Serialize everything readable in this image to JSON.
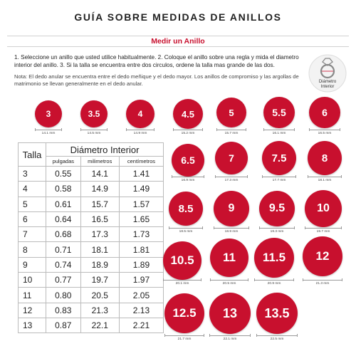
{
  "header": {
    "title": "GUÍA SOBRE MEDIDAS DE ANILLOS",
    "subtitle": "Medir un Anillo"
  },
  "instructions": "1. Seleccione un anillo que usted utilice habitualmente. 2. Coloque el anillo sobre una regla y mida el diametro interior del anillo. 3. Si la talla se encuentra entre dos circulos, ordene la talla mas grande de las dos.",
  "note": "Nota: El dedo anular se encuentra entre el dedo meñique y el dedo mayor. Los anillos de compromiso y las argollas de matrimonio se llevan generalmente en el dedo anular.",
  "ring_icon": {
    "icon": "ring-icon",
    "caption_line1": "Diámetro",
    "caption_line2": "Interior"
  },
  "table": {
    "header_size": "Talla",
    "header_diameter": "Diámetro Interior",
    "col_inches": "pulgadas",
    "col_mm": "milimetros",
    "col_cm": "centímetros",
    "rows": [
      {
        "size": "3",
        "in": "0.55",
        "mm": "14.1",
        "cm": "1.41"
      },
      {
        "size": "4",
        "in": "0.58",
        "mm": "14.9",
        "cm": "1.49"
      },
      {
        "size": "5",
        "in": "0.61",
        "mm": "15.7",
        "cm": "1.57"
      },
      {
        "size": "6",
        "in": "0.64",
        "mm": "16.5",
        "cm": "1.65"
      },
      {
        "size": "7",
        "in": "0.68",
        "mm": "17.3",
        "cm": "1.73"
      },
      {
        "size": "8",
        "in": "0.71",
        "mm": "18.1",
        "cm": "1.81"
      },
      {
        "size": "9",
        "in": "0.74",
        "mm": "18.9",
        "cm": "1.89"
      },
      {
        "size": "10",
        "in": "0.77",
        "mm": "19.7",
        "cm": "1.97"
      },
      {
        "size": "11",
        "in": "0.80",
        "mm": "20.5",
        "cm": "2.05"
      },
      {
        "size": "12",
        "in": "0.83",
        "mm": "21.3",
        "cm": "2.13"
      },
      {
        "size": "13",
        "in": "0.87",
        "mm": "22.1",
        "cm": "2.21"
      }
    ]
  },
  "circles": [
    {
      "label": "3",
      "mm": "14.1 mm"
    },
    {
      "label": "3.5",
      "mm": "14.5 mm"
    },
    {
      "label": "4",
      "mm": "14.9 mm"
    },
    {
      "label": "4.5",
      "mm": "15.2 mm"
    },
    {
      "label": "5",
      "mm": "15.7 mm"
    },
    {
      "label": "5.5",
      "mm": "16.1 mm"
    },
    {
      "label": "6",
      "mm": "16.5 mm"
    },
    {
      "label": "6.5",
      "mm": "16.9 mm"
    },
    {
      "label": "7",
      "mm": "17.3 mm"
    },
    {
      "label": "7.5",
      "mm": "17.7 mm"
    },
    {
      "label": "8",
      "mm": "18.1 mm"
    },
    {
      "label": "8.5",
      "mm": "18.5 mm"
    },
    {
      "label": "9",
      "mm": "18.9 mm"
    },
    {
      "label": "9.5",
      "mm": "19.3 mm"
    },
    {
      "label": "10",
      "mm": "19.7 mm"
    },
    {
      "label": "10.5",
      "mm": "20.1 mm"
    },
    {
      "label": "11",
      "mm": "20.5 mm"
    },
    {
      "label": "11.5",
      "mm": "20.9 mm"
    },
    {
      "label": "12",
      "mm": "21.3 mm"
    },
    {
      "label": "12.5",
      "mm": "21.7 mm"
    },
    {
      "label": "13",
      "mm": "22.1 mm"
    },
    {
      "label": "13.5",
      "mm": "22.5 mm"
    }
  ],
  "colors": {
    "accent": "#c8102e"
  }
}
